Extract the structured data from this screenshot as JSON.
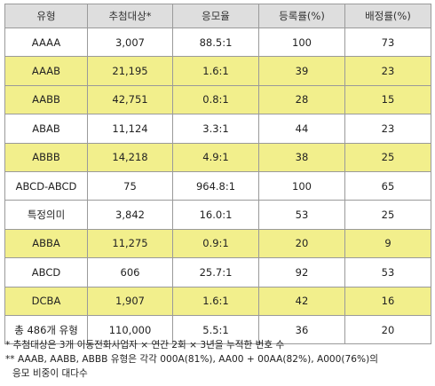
{
  "table": {
    "headers": [
      "유형",
      "추첨대상*",
      "응모율",
      "등록률(%)",
      "배정률(%)"
    ],
    "rows": [
      {
        "highlight": false,
        "cells": [
          "AAAA",
          "3,007",
          "88.5:1",
          "100",
          "73"
        ]
      },
      {
        "highlight": true,
        "cells": [
          "AAAB",
          "21,195",
          "1.6:1",
          "39",
          "23"
        ]
      },
      {
        "highlight": true,
        "cells": [
          "AABB",
          "42,751",
          "0.8:1",
          "28",
          "15"
        ]
      },
      {
        "highlight": false,
        "cells": [
          "ABAB",
          "11,124",
          "3.3:1",
          "44",
          "23"
        ]
      },
      {
        "highlight": true,
        "cells": [
          "ABBB",
          "14,218",
          "4.9:1",
          "38",
          "25"
        ]
      },
      {
        "highlight": false,
        "cells": [
          "ABCD-ABCD",
          "75",
          "964.8:1",
          "100",
          "65"
        ]
      },
      {
        "highlight": false,
        "cells": [
          "특정의미",
          "3,842",
          "16.0:1",
          "53",
          "25"
        ]
      },
      {
        "highlight": true,
        "cells": [
          "ABBA",
          "11,275",
          "0.9:1",
          "20",
          "9"
        ]
      },
      {
        "highlight": false,
        "cells": [
          "ABCD",
          "606",
          "25.7:1",
          "92",
          "53"
        ]
      },
      {
        "highlight": true,
        "cells": [
          "DCBA",
          "1,907",
          "1.6:1",
          "42",
          "16"
        ]
      },
      {
        "highlight": false,
        "cells": [
          "총 486개 유형",
          "110,000",
          "5.5:1",
          "36",
          "20"
        ]
      }
    ],
    "highlight_color": "#f2ef8c",
    "header_color": "#dedede"
  },
  "notes": {
    "line1": "* 추첨대상은 3개 이동전화사업자 × 연간 2회 × 3년을 누적한 번호 수",
    "line2": "** AAAB, AABB, ABBB 유형은 각각 000A(81%), AA00 + 00AA(82%), A000(76%)의",
    "line3": "응모 비중이 대다수"
  }
}
